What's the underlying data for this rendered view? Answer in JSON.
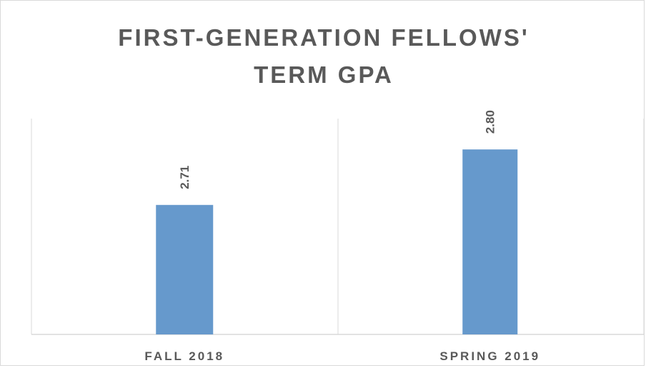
{
  "chart_data": {
    "type": "bar",
    "title_lines": [
      "FIRST-GENERATION FELLOWS'",
      "TERM GPA"
    ],
    "categories": [
      "FALL 2018",
      "SPRING 2019"
    ],
    "values": [
      2.71,
      2.8
    ],
    "data_labels": [
      "2.71",
      "2.80"
    ],
    "xlabel": "",
    "ylabel": "",
    "ylim": [
      2.5,
      2.85
    ],
    "bar_color": "#6699cc",
    "text_color": "#595959",
    "axis_color": "#d9d9d9",
    "grid": false,
    "legend": "none"
  }
}
